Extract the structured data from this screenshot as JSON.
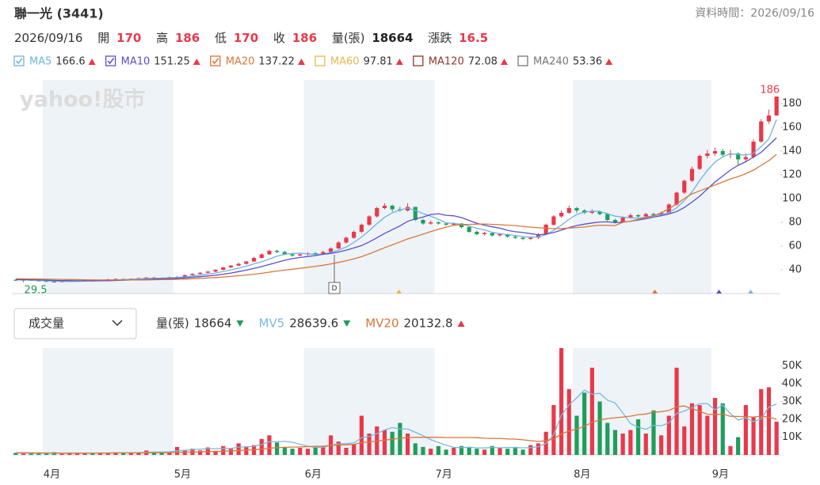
{
  "header": {
    "title": "聯一光 (3441)",
    "data_time_label": "資料時間：",
    "date": "2026/09/16",
    "labels": {
      "open": "開",
      "high": "高",
      "low": "低",
      "close": "收",
      "change": "漲跌"
    },
    "change": 16.5
  },
  "chart_data": [
    {
      "type": "candlestick",
      "watermark": "yahoo!股市",
      "marker": "D",
      "ylim": [
        20,
        200
      ],
      "yticks": [
        40,
        60,
        80,
        100,
        120,
        140,
        160,
        180
      ],
      "up_color": "#e8394a",
      "down_color": "#1e9e5a",
      "open": [
        31.5,
        31,
        31.5,
        31,
        30.5,
        30,
        29.8,
        30.2,
        30.5,
        31,
        31.2,
        31,
        31.5,
        32,
        32.3,
        32,
        32.5,
        33,
        33.5,
        33.2,
        33,
        33.8,
        34,
        35.5,
        36.5,
        37.5,
        38.5,
        40,
        42,
        43.5,
        45,
        47,
        50,
        53,
        56,
        55,
        53,
        52,
        53,
        54,
        53,
        55,
        58,
        63,
        67,
        72,
        78,
        85,
        92,
        94,
        91,
        90,
        93,
        82,
        79,
        80,
        79,
        78,
        79,
        76,
        72,
        70,
        71,
        69,
        70,
        68,
        67,
        66,
        67,
        70,
        78,
        85,
        88,
        92,
        90,
        88,
        89,
        87,
        82,
        80,
        84,
        86,
        85,
        87,
        86,
        88,
        95,
        105,
        115,
        125,
        136,
        138,
        140,
        137,
        138,
        133,
        135,
        148,
        165,
        170
      ],
      "high": [
        32,
        32,
        31.8,
        31.2,
        30.8,
        30.4,
        30.5,
        30.8,
        31.3,
        31.6,
        31.5,
        31.8,
        32.4,
        32.8,
        32.6,
        32.9,
        33.5,
        34,
        34,
        33.6,
        34.2,
        34.8,
        36,
        37,
        38,
        39,
        40.5,
        42.5,
        44,
        46,
        47.5,
        51,
        54,
        57,
        57,
        56,
        54,
        54,
        55,
        55,
        56,
        59,
        64,
        68,
        73,
        79,
        86,
        93,
        96,
        95,
        93,
        96,
        93,
        83,
        81.5,
        81,
        80,
        80,
        79.5,
        76.5,
        73,
        72,
        72,
        71,
        70.5,
        69,
        68,
        68,
        71,
        79,
        86,
        90,
        94,
        93,
        91,
        91,
        90,
        88,
        83,
        85,
        87.5,
        87,
        88,
        88,
        89,
        96,
        106,
        116,
        127,
        137,
        141,
        143,
        142,
        141,
        139,
        138,
        150,
        167,
        175,
        186
      ],
      "low": [
        30.5,
        29.5,
        30.6,
        30.2,
        29.8,
        29.7,
        29.6,
        30,
        30.3,
        30.8,
        30.7,
        30.8,
        31.3,
        31.8,
        31.7,
        31.8,
        32.3,
        32.8,
        32.9,
        32.6,
        32.8,
        33.5,
        33.8,
        35.2,
        36,
        37,
        38,
        39.5,
        41.5,
        43,
        44.5,
        46.5,
        49.5,
        52.5,
        54,
        52.5,
        51,
        51.5,
        52,
        52,
        52.5,
        54.5,
        57.5,
        62,
        66,
        71,
        77,
        84,
        91,
        89,
        89,
        89,
        81,
        78,
        78,
        78,
        77,
        77,
        75,
        71,
        69,
        69,
        68,
        68,
        67,
        66,
        65,
        65,
        66,
        69.5,
        77,
        84,
        87,
        88,
        87,
        87,
        86,
        81,
        79,
        79.5,
        83,
        84,
        84,
        85,
        85,
        87.5,
        94,
        104,
        114,
        124,
        134,
        136,
        135,
        134,
        128,
        131,
        134,
        147,
        163,
        170
      ],
      "close": [
        31,
        31.5,
        31,
        30.5,
        30,
        29.8,
        30.2,
        30.5,
        31,
        31.2,
        31,
        31.5,
        32,
        32.3,
        32,
        32.5,
        33,
        33.5,
        33.2,
        33,
        33.8,
        34,
        35.5,
        36.5,
        37.5,
        38.5,
        40,
        42,
        43.5,
        45,
        47,
        50,
        53,
        56,
        55,
        53,
        52,
        53,
        54,
        53,
        55,
        58,
        63,
        67,
        72,
        78,
        85,
        92,
        94,
        91,
        90,
        93,
        82,
        79,
        80,
        79,
        78,
        79,
        76,
        72,
        70,
        71,
        69,
        70,
        68,
        67,
        66,
        67,
        70,
        78,
        85,
        88,
        92,
        90,
        88,
        89,
        87,
        82,
        80,
        84,
        86,
        85,
        87,
        86,
        88,
        95,
        105,
        115,
        125,
        136,
        138,
        140,
        137,
        138,
        133,
        135,
        148,
        165,
        170,
        186
      ],
      "series": [
        {
          "name": "MA5",
          "color": "#6fb3e0",
          "checked": true,
          "values": [
            31.5,
            31.4,
            31.3,
            31.1,
            30.8,
            30.5,
            30.3,
            30.2,
            30.3,
            30.5,
            30.8,
            31,
            31.2,
            31.5,
            31.7,
            32,
            32.4,
            32.7,
            32.9,
            33,
            33.3,
            33.5,
            34,
            34.7,
            35.5,
            36.4,
            37.3,
            38.6,
            40,
            41.4,
            43,
            45,
            46.8,
            49,
            51.5,
            53,
            53.8,
            54,
            53.5,
            53,
            53.2,
            54.6,
            56.6,
            59.2,
            63,
            67.6,
            73,
            78.8,
            84.2,
            88,
            90.4,
            92,
            90,
            87.4,
            85.2,
            82.6,
            79.6,
            79,
            78.4,
            76.8,
            75,
            73.6,
            71.6,
            70.4,
            69.6,
            69,
            68,
            67.6,
            67.6,
            69.6,
            73.2,
            77.6,
            82.6,
            86.6,
            88.6,
            89.4,
            89.2,
            87.2,
            85.2,
            84.4,
            83.8,
            83.4,
            84.4,
            85.6,
            86.4,
            88.2,
            92.2,
            98.2,
            105.6,
            115.2,
            123.8,
            130.8,
            135.2,
            137.8,
            137.2,
            136.6,
            138.2,
            143.8,
            150.2,
            166.6
          ]
        },
        {
          "name": "MA10",
          "color": "#5a4fcf",
          "checked": true,
          "values": [
            31.8,
            31.7,
            31.6,
            31.5,
            31.3,
            31.1,
            30.9,
            30.8,
            30.7,
            30.7,
            30.6,
            30.7,
            30.8,
            31,
            31.2,
            31.4,
            31.6,
            31.9,
            32.2,
            32.4,
            32.6,
            32.8,
            33.2,
            33.7,
            34.2,
            34.8,
            35.4,
            36.3,
            37.3,
            38.5,
            39.7,
            41.2,
            42.7,
            44.5,
            46.3,
            48,
            49.4,
            50.4,
            51.2,
            52,
            53.1,
            53.8,
            55,
            56.5,
            58.4,
            60.4,
            63.5,
            66.9,
            70.6,
            73.8,
            77,
            80.8,
            83,
            84.4,
            86.6,
            87.3,
            85.9,
            85.5,
            84,
            81.6,
            79.3,
            77.6,
            76.2,
            75.1,
            73.3,
            72.1,
            71.4,
            70.5,
            69.6,
            70,
            71.4,
            73.4,
            75.6,
            77.3,
            78.5,
            79.5,
            80.3,
            80.4,
            79.7,
            80.1,
            80.9,
            81.9,
            83,
            84.4,
            85.6,
            87,
            89.1,
            92.5,
            97,
            102,
            108,
            114,
            119,
            124,
            128,
            131,
            135,
            139,
            145,
            151.25
          ]
        },
        {
          "name": "MA20",
          "color": "#d9773a",
          "checked": true,
          "values": [
            32.5,
            32.4,
            32.3,
            32.2,
            32.1,
            32,
            31.9,
            31.8,
            31.7,
            31.6,
            31.5,
            31.4,
            31.4,
            31.4,
            31.4,
            31.4,
            31.4,
            31.5,
            31.6,
            31.7,
            31.8,
            32,
            32.2,
            32.5,
            32.8,
            33.1,
            33.5,
            33.9,
            34.4,
            35,
            35.6,
            36.3,
            37.1,
            38,
            38.9,
            39.7,
            40.5,
            41.3,
            42.1,
            42.9,
            43.8,
            44.9,
            46.2,
            47.6,
            49.3,
            51.1,
            53.4,
            56,
            58.6,
            61,
            63.5,
            66,
            68,
            70,
            72.2,
            74.2,
            75.9,
            77.5,
            78.2,
            78.3,
            78.5,
            78.6,
            78.3,
            78,
            77.6,
            77.3,
            76.6,
            75.9,
            75.4,
            75,
            74.7,
            74.8,
            75.2,
            75.6,
            76.1,
            76.9,
            77.6,
            77.5,
            77.3,
            80,
            81,
            82.5,
            84,
            85.5,
            88,
            91.5,
            95.5,
            100,
            104,
            106.5,
            109,
            111.5,
            114,
            116.5,
            118.5,
            121,
            124,
            128,
            132,
            137.22
          ]
        },
        {
          "name": "MA60",
          "color": "#e8b84a",
          "checked": false,
          "last": 97.81
        },
        {
          "name": "MA120",
          "color": "#8b3a2a",
          "checked": false,
          "last": 72.08
        },
        {
          "name": "MA240",
          "color": "#777777",
          "checked": false,
          "last": 53.36
        }
      ]
    },
    {
      "type": "bar",
      "indicator": "成交量",
      "categories": [
        null,
        null,
        null,
        null,
        "4月",
        null,
        null,
        null,
        null,
        null,
        null,
        null,
        null,
        null,
        null,
        null,
        null,
        null,
        null,
        null,
        null,
        "5月",
        null,
        null,
        null,
        null,
        null,
        null,
        null,
        null,
        null,
        null,
        null,
        null,
        null,
        null,
        null,
        null,
        "6月",
        null,
        null,
        null,
        null,
        null,
        null,
        null,
        null,
        null,
        null,
        null,
        null,
        null,
        null,
        null,
        null,
        "7月",
        null,
        null,
        null,
        null,
        null,
        null,
        null,
        null,
        null,
        null,
        null,
        null,
        null,
        null,
        null,
        null,
        null,
        "8月",
        null,
        null,
        null,
        null,
        null,
        null,
        null,
        null,
        null,
        null,
        null,
        null,
        null,
        null,
        null,
        null,
        null,
        "9月",
        null,
        null,
        null,
        null,
        null,
        null,
        null,
        null
      ],
      "ylim": [
        0,
        60000
      ],
      "yticks": [
        {
          "value": 10000,
          "label": "10K"
        },
        {
          "value": 20000,
          "label": "20K"
        },
        {
          "value": 30000,
          "label": "30K"
        },
        {
          "value": 40000,
          "label": "40K"
        },
        {
          "value": 50000,
          "label": "50K"
        }
      ],
      "series": [
        {
          "name": "量(張)",
          "trend": "down",
          "values": [
            1200,
            900,
            800,
            1000,
            700,
            1500,
            600,
            800,
            1000,
            1200,
            900,
            1300,
            1100,
            1500,
            1000,
            1200,
            1400,
            2500,
            1800,
            1200,
            1600,
            4500,
            2800,
            3500,
            2500,
            4200,
            2300,
            5000,
            3800,
            6500,
            4800,
            5500,
            9000,
            11000,
            7000,
            4500,
            3500,
            4000,
            3500,
            4200,
            5000,
            11000,
            7500,
            4000,
            6000,
            22000,
            12000,
            16000,
            14000,
            13000,
            18000,
            12000,
            6500,
            4500,
            3500,
            5000,
            3000,
            4000,
            5000,
            4500,
            3500,
            3000,
            5000,
            4000,
            3500,
            4500,
            3000,
            5500,
            6500,
            13000,
            28000,
            60000,
            37000,
            22000,
            35000,
            49000,
            30000,
            18000,
            14000,
            12000,
            14000,
            20000,
            12000,
            25000,
            11000,
            22000,
            49000,
            16000,
            29000,
            28000,
            22000,
            32000,
            29000,
            5000,
            10000,
            28000,
            21534,
            37000,
            38000,
            18664
          ]
        },
        {
          "name": "MV5",
          "color": "#7ab8e0",
          "trend": "down",
          "values": [
            1100,
            1000,
            950,
            950,
            920,
            1000,
            900,
            900,
            950,
            1000,
            1000,
            1100,
            1100,
            1200,
            1200,
            1250,
            1250,
            1500,
            1600,
            1650,
            1700,
            2300,
            2600,
            3000,
            3200,
            3500,
            3500,
            3700,
            3600,
            4400,
            4500,
            4900,
            5900,
            7400,
            7500,
            7600,
            7100,
            6000,
            4900,
            4300,
            4200,
            5500,
            6200,
            6300,
            6700,
            9700,
            10300,
            12000,
            14000,
            15400,
            14600,
            14600,
            12700,
            10800,
            8600,
            7000,
            5500,
            4200,
            4100,
            4300,
            4000,
            3900,
            4200,
            4000,
            4200,
            4100,
            4000,
            4100,
            4600,
            6500,
            11300,
            22200,
            28100,
            32000,
            36400,
            34200,
            34600,
            30800,
            29200,
            23600,
            17600,
            15600,
            14400,
            16600,
            16400,
            18000,
            23400,
            24600,
            26600,
            28800,
            28800,
            25400,
            28000,
            23200,
            19600,
            20800,
            18700,
            20300,
            26900,
            28639.6
          ]
        },
        {
          "name": "MV20",
          "color": "#d9773a",
          "trend": "up",
          "values": [
            1300,
            1250,
            1200,
            1150,
            1100,
            1100,
            1050,
            1050,
            1050,
            1050,
            1050,
            1050,
            1050,
            1100,
            1100,
            1100,
            1150,
            1200,
            1250,
            1250,
            1300,
            1450,
            1550,
            1650,
            1750,
            1900,
            1950,
            2150,
            2300,
            2550,
            2700,
            2900,
            3300,
            3800,
            4100,
            4250,
            4400,
            4500,
            4650,
            4800,
            4950,
            5400,
            5600,
            5700,
            5900,
            6900,
            7300,
            7800,
            8300,
            8800,
            9400,
            9800,
            9900,
            9900,
            9900,
            9900,
            9800,
            9800,
            9800,
            9800,
            9700,
            9400,
            9300,
            9300,
            9000,
            8900,
            8500,
            8000,
            7600,
            7900,
            9000,
            11800,
            13500,
            14500,
            16100,
            18300,
            19700,
            20400,
            20900,
            21300,
            21800,
            22600,
            23000,
            24000,
            24300,
            25000,
            27000,
            27500,
            26000,
            24500,
            22900,
            22700,
            23000,
            21700,
            21600,
            21500,
            21300,
            21800,
            21200,
            20132.8
          ]
        }
      ]
    }
  ]
}
